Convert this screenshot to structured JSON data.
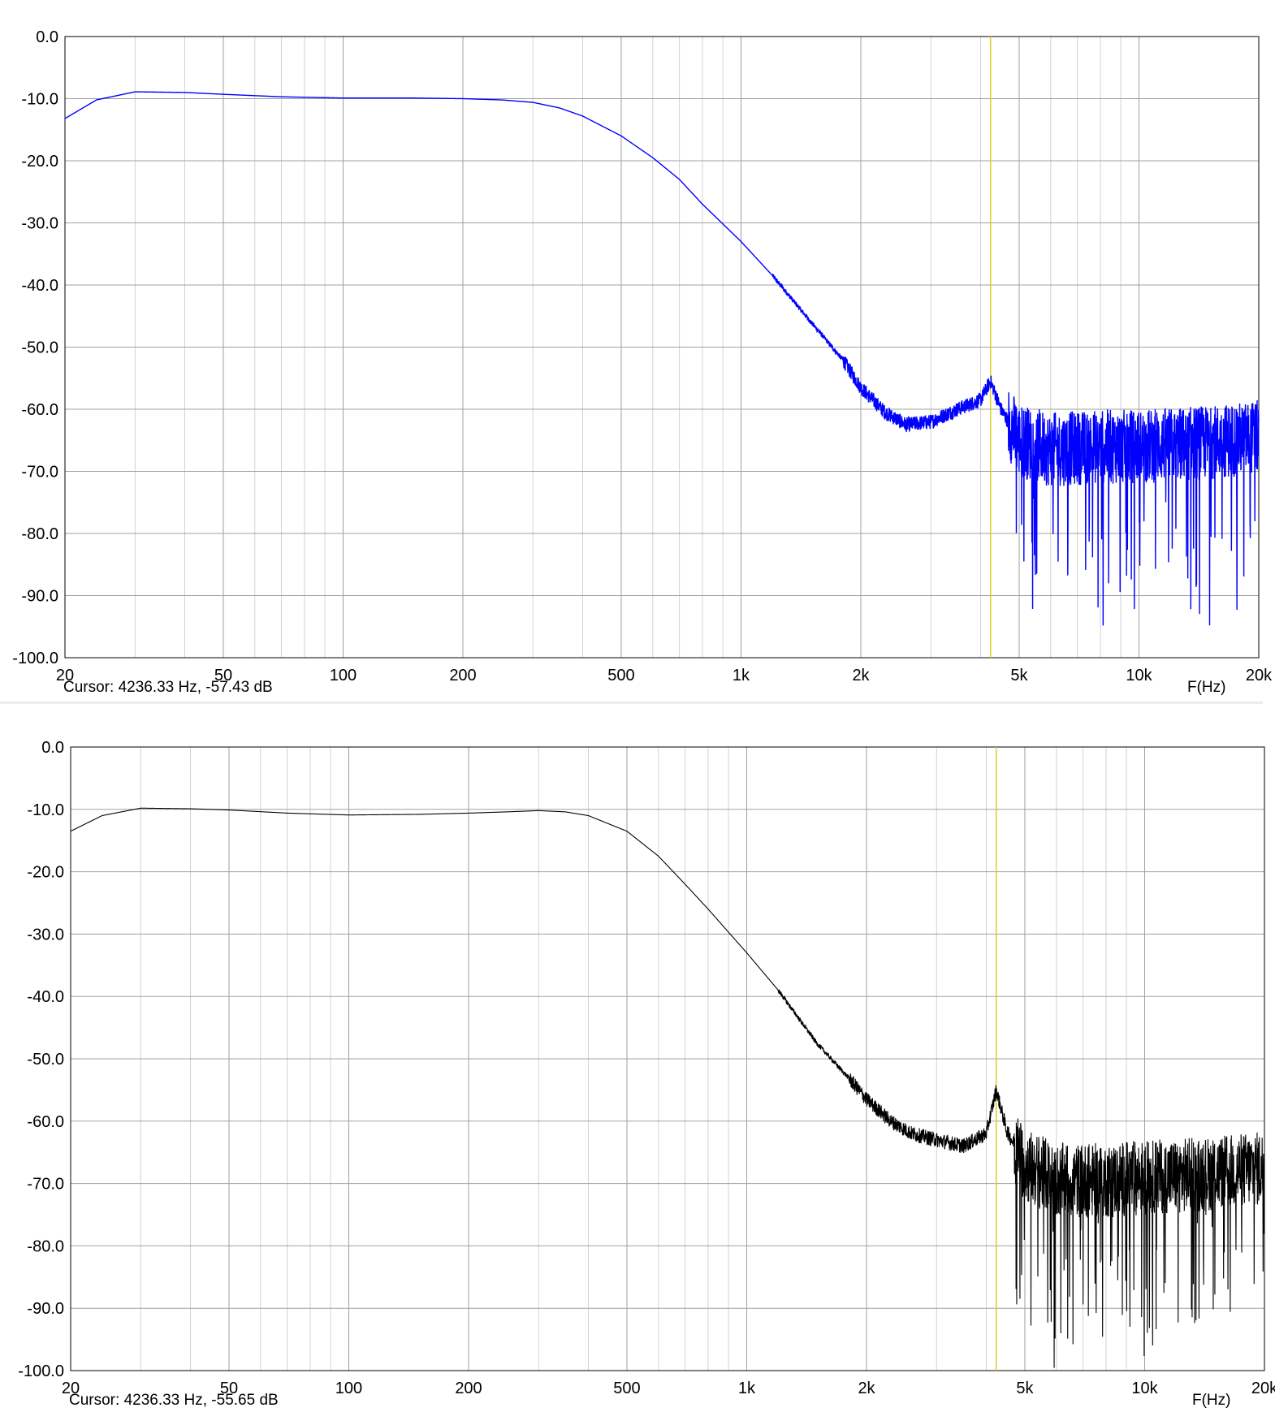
{
  "chart_data": [
    {
      "type": "line",
      "title": "",
      "xlabel": "F(Hz)",
      "ylabel": "",
      "x_scale": "log",
      "xlim": [
        20,
        20000
      ],
      "ylim": [
        -100,
        0
      ],
      "grid": true,
      "x_tick_values": [
        20,
        50,
        100,
        200,
        500,
        1000,
        2000,
        5000,
        10000,
        20000
      ],
      "x_tick_labels": [
        "20",
        "50",
        "100",
        "200",
        "500",
        "1k",
        "2k",
        "5k",
        "10k",
        "20k"
      ],
      "y_ticks": [
        0,
        -10,
        -20,
        -30,
        -40,
        -50,
        -60,
        -70,
        -80,
        -90,
        -100
      ],
      "y_tick_labels": [
        "0.0",
        "-10.0",
        "-20.0",
        "-30.0",
        "-40.0",
        "-50.0",
        "-60.0",
        "-70.0",
        "-80.0",
        "-90.0",
        "-100.0"
      ],
      "cursor": {
        "frequency_hz": 4236.33,
        "level_db": -57.43,
        "text": "Cursor: 4236.33 Hz, -57.43 dB"
      },
      "series": [
        {
          "color": "#0000ff",
          "x": [
            20,
            24,
            30,
            40,
            50,
            70,
            100,
            150,
            200,
            250,
            300,
            350,
            400,
            500,
            600,
            700,
            800,
            1000,
            1200,
            1500,
            1800,
            2000,
            2300,
            2600,
            3000,
            3500,
            4000,
            4236,
            4500,
            5000,
            6000,
            8000,
            10000,
            14000,
            20000
          ],
          "y": [
            -13.2,
            -10.2,
            -8.9,
            -9.0,
            -9.3,
            -9.7,
            -9.9,
            -9.9,
            -10.0,
            -10.2,
            -10.6,
            -11.5,
            -12.8,
            -16.0,
            -19.5,
            -23.0,
            -27.0,
            -33.0,
            -38.5,
            -46.0,
            -52.0,
            -56.5,
            -60.5,
            -62.5,
            -62.0,
            -60.0,
            -58.5,
            -55.5,
            -60.0,
            -65.0,
            -66.5,
            -66.0,
            -66.0,
            -65.5,
            -64.5
          ]
        }
      ]
    },
    {
      "type": "line",
      "title": "",
      "xlabel": "F(Hz)",
      "ylabel": "",
      "x_scale": "log",
      "xlim": [
        20,
        20000
      ],
      "ylim": [
        -100,
        0
      ],
      "grid": true,
      "x_tick_values": [
        20,
        50,
        100,
        200,
        500,
        1000,
        2000,
        5000,
        10000,
        20000
      ],
      "x_tick_labels": [
        "20",
        "50",
        "100",
        "200",
        "500",
        "1k",
        "2k",
        "5k",
        "10k",
        "20k"
      ],
      "y_ticks": [
        0,
        -10,
        -20,
        -30,
        -40,
        -50,
        -60,
        -70,
        -80,
        -90,
        -100
      ],
      "y_tick_labels": [
        "0.0",
        "-10.0",
        "-20.0",
        "-30.0",
        "-40.0",
        "-50.0",
        "-60.0",
        "-70.0",
        "-80.0",
        "-90.0",
        "-100.0"
      ],
      "cursor": {
        "frequency_hz": 4236.33,
        "level_db": -55.65,
        "text": "Cursor: 4236.33 Hz, -55.65 dB"
      },
      "series": [
        {
          "color": "#000000",
          "x": [
            20,
            24,
            30,
            40,
            50,
            70,
            100,
            150,
            200,
            250,
            300,
            350,
            400,
            500,
            600,
            700,
            800,
            1000,
            1200,
            1500,
            1800,
            2000,
            2300,
            2600,
            3000,
            3500,
            4000,
            4236,
            4500,
            5000,
            6000,
            8000,
            10000,
            14000,
            20000
          ],
          "y": [
            -13.5,
            -11.0,
            -9.8,
            -9.9,
            -10.1,
            -10.6,
            -10.9,
            -10.8,
            -10.6,
            -10.4,
            -10.2,
            -10.4,
            -11.0,
            -13.5,
            -17.5,
            -22.0,
            -26.0,
            -33.0,
            -39.0,
            -47.5,
            -53.0,
            -56.5,
            -60.0,
            -62.0,
            -63.0,
            -64.0,
            -62.0,
            -55.0,
            -61.5,
            -67.0,
            -69.5,
            -69.5,
            -69.0,
            -68.5,
            -67.5
          ]
        }
      ]
    }
  ],
  "colors": {
    "grid": "#a0a0a0",
    "cursor_line": "#dcd02a",
    "frame": "#000000",
    "separator": "#ececec"
  }
}
